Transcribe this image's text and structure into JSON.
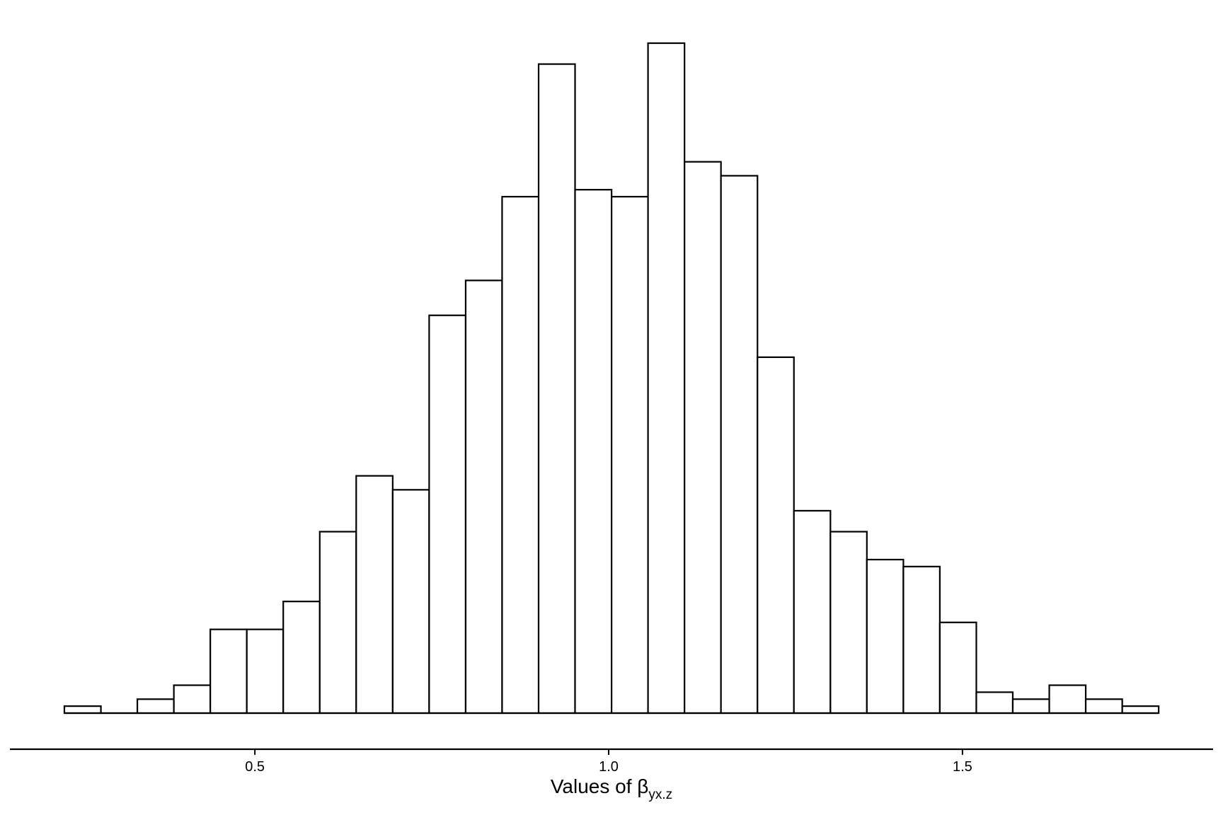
{
  "chart_data": {
    "type": "bar",
    "histogram": true,
    "bins": [
      {
        "x0": 0.2308,
        "x1": 0.2824,
        "count": 1
      },
      {
        "x0": 0.2824,
        "x1": 0.3339,
        "count": 0
      },
      {
        "x0": 0.3339,
        "x1": 0.3855,
        "count": 2
      },
      {
        "x0": 0.3855,
        "x1": 0.437,
        "count": 4
      },
      {
        "x0": 0.437,
        "x1": 0.4886,
        "count": 12
      },
      {
        "x0": 0.4886,
        "x1": 0.5401,
        "count": 12
      },
      {
        "x0": 0.5401,
        "x1": 0.5917,
        "count": 16
      },
      {
        "x0": 0.5917,
        "x1": 0.6432,
        "count": 26
      },
      {
        "x0": 0.6432,
        "x1": 0.6948,
        "count": 34
      },
      {
        "x0": 0.6948,
        "x1": 0.7463,
        "count": 32
      },
      {
        "x0": 0.7463,
        "x1": 0.7979,
        "count": 57
      },
      {
        "x0": 0.7979,
        "x1": 0.8494,
        "count": 62
      },
      {
        "x0": 0.8494,
        "x1": 0.901,
        "count": 74
      },
      {
        "x0": 0.901,
        "x1": 0.9525,
        "count": 93
      },
      {
        "x0": 0.9525,
        "x1": 1.0041,
        "count": 75
      },
      {
        "x0": 1.0041,
        "x1": 1.0556,
        "count": 74
      },
      {
        "x0": 1.0556,
        "x1": 1.1072,
        "count": 96
      },
      {
        "x0": 1.1072,
        "x1": 1.1587,
        "count": 79
      },
      {
        "x0": 1.1587,
        "x1": 1.2103,
        "count": 77
      },
      {
        "x0": 1.2103,
        "x1": 1.2618,
        "count": 51
      },
      {
        "x0": 1.2618,
        "x1": 1.3134,
        "count": 29
      },
      {
        "x0": 1.3134,
        "x1": 1.3649,
        "count": 26
      },
      {
        "x0": 1.3649,
        "x1": 1.4165,
        "count": 22
      },
      {
        "x0": 1.4165,
        "x1": 1.468,
        "count": 21
      },
      {
        "x0": 1.468,
        "x1": 1.5196,
        "count": 13
      },
      {
        "x0": 1.5196,
        "x1": 1.5711,
        "count": 3
      },
      {
        "x0": 1.5711,
        "x1": 1.6227,
        "count": 2
      },
      {
        "x0": 1.6227,
        "x1": 1.6742,
        "count": 4
      },
      {
        "x0": 1.6742,
        "x1": 1.7258,
        "count": 2
      },
      {
        "x0": 1.7258,
        "x1": 1.7773,
        "count": 1
      }
    ],
    "x_ticks": [
      {
        "value": 0.5,
        "label": "0.5"
      },
      {
        "value": 1.0,
        "label": "1.0"
      },
      {
        "value": 1.5,
        "label": "1.5"
      }
    ],
    "xlabel_main": "Values of β",
    "xlabel_sub": "yx.z",
    "xlim": [
      0.1538,
      1.8542
    ],
    "ylim": [
      0,
      100
    ],
    "y_axis_shown": false,
    "grid": false,
    "legend": "none",
    "colors": {
      "bar_fill": "#ffffff",
      "bar_stroke": "#000000",
      "axis": "#000000"
    }
  }
}
